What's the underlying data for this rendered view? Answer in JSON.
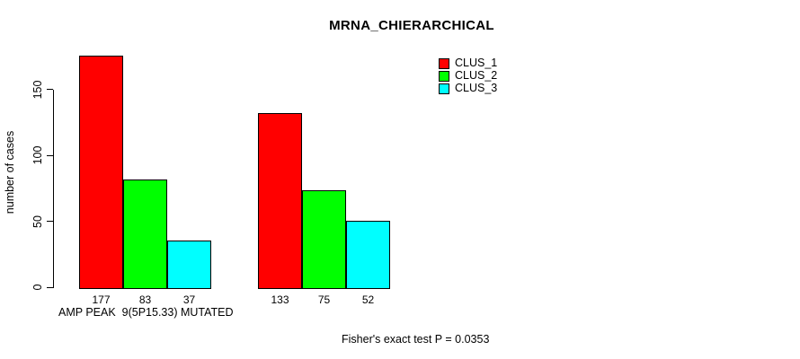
{
  "chart_data": {
    "type": "bar",
    "title": "MRNA_CHIERARCHICAL",
    "ylabel": "number of cases",
    "xlabel": "AMP PEAK  9(5P15.33) MUTATED",
    "footnote": "Fisher's exact test P = 0.0353",
    "yticks": [
      0,
      50,
      100,
      150
    ],
    "ylim": [
      0,
      180
    ],
    "grid": false,
    "background": "#ffffff",
    "legend_position": "top-right-inside",
    "bar_value_labels_shown": true,
    "groups": [
      {
        "label": "AMP PEAK  9(5P15.33) MUTATED",
        "values": [
          177,
          83,
          37
        ]
      },
      {
        "label": "",
        "values": [
          133,
          75,
          52
        ]
      }
    ],
    "series": [
      {
        "name": "CLUS_1",
        "color": "#FF0000",
        "values": [
          177,
          133
        ]
      },
      {
        "name": "CLUS_2",
        "color": "#00FF00",
        "values": [
          83,
          75
        ]
      },
      {
        "name": "CLUS_3",
        "color": "#00FFFF",
        "values": [
          37,
          52
        ]
      }
    ]
  }
}
